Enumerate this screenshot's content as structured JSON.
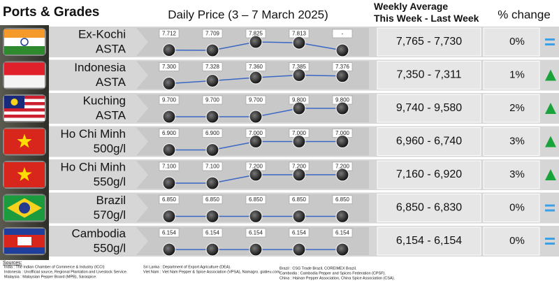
{
  "header": {
    "ports": "Ports & Grades",
    "daily": "Daily Price (3 – 7 March 2025)",
    "weekly": "Weekly Average\nThis Week - Last Week",
    "change": "% change"
  },
  "rows": [
    {
      "name": "Ex-Kochi",
      "grade": "ASTA",
      "flag": "india",
      "prices": [
        7712,
        7709,
        7825,
        7813,
        null
      ],
      "price_labels": [
        "7.712",
        "7.709",
        "7.825",
        "7.813",
        "-"
      ],
      "weekly": "7,765 - 7,730",
      "change": "0%",
      "trend": "equal"
    },
    {
      "name": "Indonesia",
      "grade": "ASTA",
      "flag": "indonesia",
      "prices": [
        7300,
        7328,
        7360,
        7385,
        7376
      ],
      "price_labels": [
        "7.300",
        "7.328",
        "7.360",
        "7.385",
        "7.376"
      ],
      "weekly": "7,350 - 7,311",
      "change": "1%",
      "trend": "up"
    },
    {
      "name": "Kuching",
      "grade": "ASTA",
      "flag": "malaysia",
      "prices": [
        9700,
        9700,
        9700,
        9800,
        9800
      ],
      "price_labels": [
        "9.700",
        "9.700",
        "9.700",
        "9.800",
        "9.800"
      ],
      "weekly": "9,740 - 9,580",
      "change": "2%",
      "trend": "up"
    },
    {
      "name": "Ho Chi Minh",
      "grade": "500g/l",
      "flag": "vietnam",
      "prices": [
        6900,
        6900,
        7000,
        7000,
        7000
      ],
      "price_labels": [
        "6.900",
        "6.900",
        "7.000",
        "7.000",
        "7.000"
      ],
      "weekly": "6,960 - 6,740",
      "change": "3%",
      "trend": "up"
    },
    {
      "name": "Ho Chi Minh",
      "grade": "550g/l",
      "flag": "vietnam",
      "prices": [
        7100,
        7100,
        7200,
        7200,
        7200
      ],
      "price_labels": [
        "7.100",
        "7.100",
        "7.200",
        "7.200",
        "7.200"
      ],
      "weekly": "7,160 - 6,920",
      "change": "3%",
      "trend": "up"
    },
    {
      "name": "Brazil",
      "grade": "570g/l",
      "flag": "brazil",
      "prices": [
        6850,
        6850,
        6850,
        6850,
        6850
      ],
      "price_labels": [
        "6.850",
        "6.850",
        "6.850",
        "6.850",
        "6.850"
      ],
      "weekly": "6,850 - 6,830",
      "change": "0%",
      "trend": "equal"
    },
    {
      "name": "Cambodia",
      "grade": "550g/l",
      "flag": "cambodia",
      "prices": [
        6154,
        6154,
        6154,
        6154,
        6154
      ],
      "price_labels": [
        "6.154",
        "6.154",
        "6.154",
        "6.154",
        "6.154"
      ],
      "weekly": "6,154 - 6,154",
      "change": "0%",
      "trend": "equal"
    }
  ],
  "sources": {
    "title": "Sources:",
    "items": [
      "India : The Indian Chamber of Commerce & Industry (ICCI)",
      "Indonesia : Unofficial source, Regional Plantation and Livestock Service.",
      "Malaysia : Malaysian Pepper Board (MPB), Saraspice.",
      "Sri Lanka : Department of Export Agriculture (DEA).",
      "Viet Nam : Viet Nam Pepper & Spice Association (VPSA), Namagro. giatieu.com.",
      "Brazil : CSG Trade Brazil, COREIMEX Brazil.",
      "Cambodia : Cambodia Pepper and Spices Federation (CPSF).",
      "China : Hainan Pepper Association, China Spice Association (CSA)."
    ]
  }
}
